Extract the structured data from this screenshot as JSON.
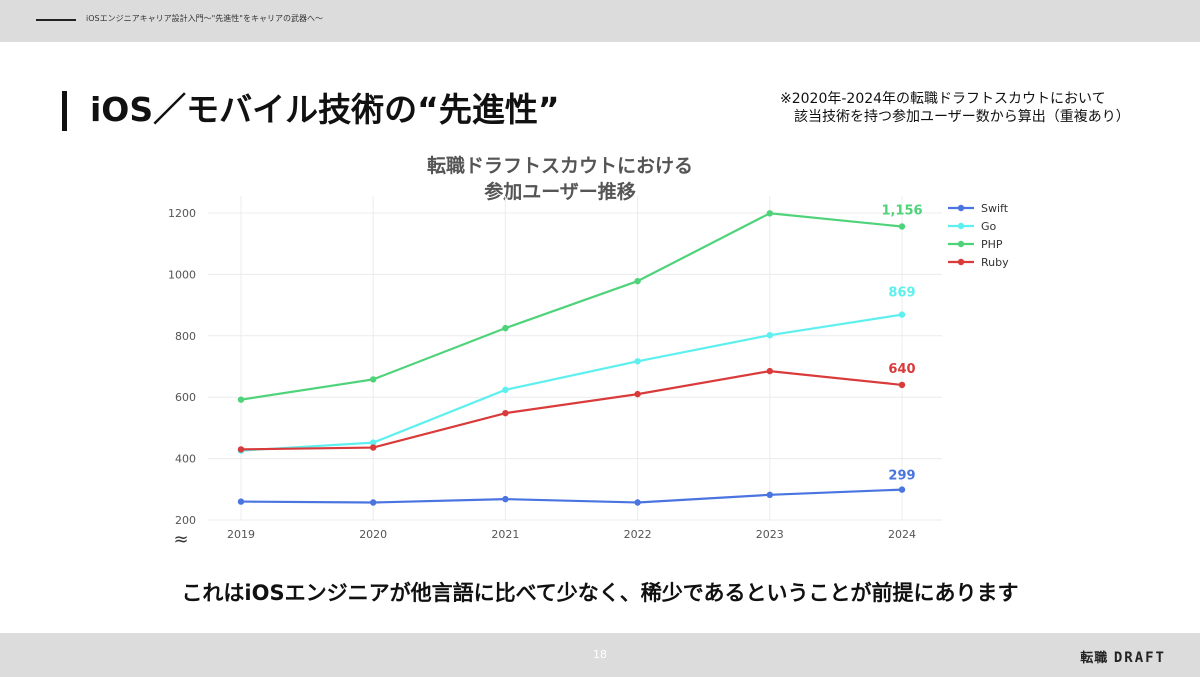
{
  "header": {
    "breadcrumb": "iOSエンジニアキャリア設計入門〜\"先進性\"をキャリアの武器へ〜"
  },
  "slide": {
    "title": "iOS／モバイル技術の“先進性”",
    "note_line1": "※2020年-2024年の転職ドラフトスカウトにおいて",
    "note_line2": "該当技術を持つ参加ユーザー数から算出（重複あり）",
    "conclusion": "これはiOSエンジニアが他言語に比べて少なく、稀少であるということが前提にあります"
  },
  "footer": {
    "page_number": "18",
    "logo_prefix": "転職",
    "logo_brand": "DRAFT"
  },
  "chart_data": {
    "type": "line",
    "title_line1": "転職ドラフトスカウトにおける",
    "title_line2": "参加ユーザー推移",
    "x": [
      "2019",
      "2020",
      "2021",
      "2022",
      "2023",
      "2024"
    ],
    "ylim": [
      200,
      1250
    ],
    "yticks": [
      "200",
      "400",
      "600",
      "800",
      "1000",
      "1200"
    ],
    "axis_break": "≈",
    "grid": true,
    "legend_position": "top-right",
    "series": [
      {
        "name": "Swift",
        "color": "#4a74e0",
        "values": [
          260,
          257,
          268,
          257,
          282,
          299
        ],
        "end_label": "299"
      },
      {
        "name": "Go",
        "color": "#5ef0ee",
        "values": [
          426,
          452,
          624,
          717,
          802,
          869
        ],
        "end_label": "869"
      },
      {
        "name": "PHP",
        "color": "#4fd37a",
        "values": [
          592,
          658,
          825,
          978,
          1199,
          1156
        ],
        "end_label": "1,156"
      },
      {
        "name": "Ruby",
        "color": "#d93a3a",
        "values": [
          430,
          436,
          548,
          610,
          685,
          640
        ],
        "end_label": "640"
      }
    ]
  }
}
